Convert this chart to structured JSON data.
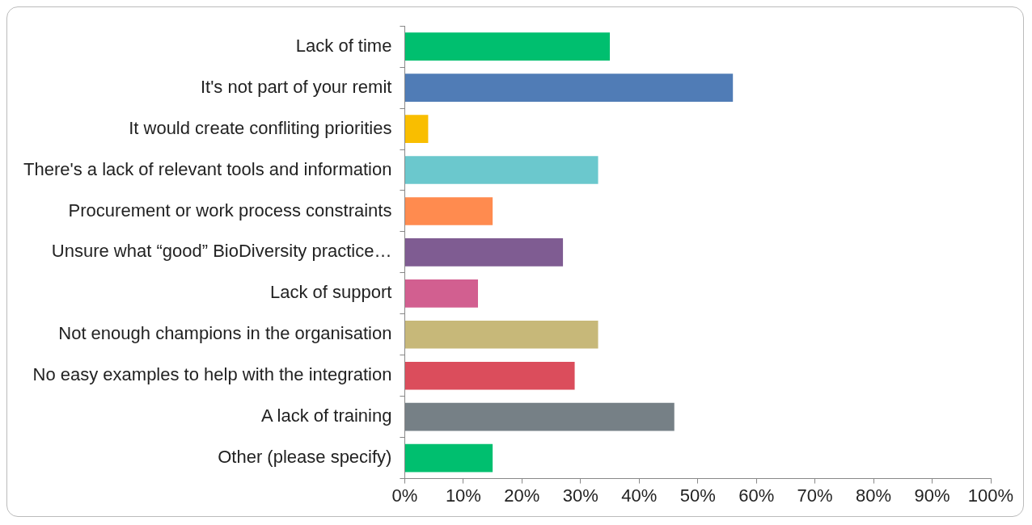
{
  "chart_data": {
    "type": "bar",
    "orientation": "horizontal",
    "categories": [
      "Lack of time",
      "It's not part of your remit",
      "It would create confliting priorities",
      "There's a lack of relevant tools and information",
      "Procurement or work process constraints",
      "Unsure what “good” BioDiversity practice…",
      "Lack of support",
      "Not enough champions in the organisation",
      "No easy examples to help with the integration",
      "A lack of training",
      "Other (please specify)"
    ],
    "values": [
      35,
      56,
      4,
      33,
      15,
      27,
      12.5,
      33,
      29,
      46,
      15
    ],
    "colors": [
      "#00bf6f",
      "#507cb6",
      "#f9be00",
      "#6bc8cd",
      "#ff8b4f",
      "#7f5c92",
      "#d25f90",
      "#c7b879",
      "#db4d5c",
      "#768086",
      "#00bf6f"
    ],
    "xlim": [
      0,
      100
    ],
    "xticks": [
      {
        "value": 0,
        "label": "0%"
      },
      {
        "value": 10,
        "label": "10%"
      },
      {
        "value": 20,
        "label": "20%"
      },
      {
        "value": 30,
        "label": "30%"
      },
      {
        "value": 40,
        "label": "40%"
      },
      {
        "value": 50,
        "label": "50%"
      },
      {
        "value": 60,
        "label": "60%"
      },
      {
        "value": 70,
        "label": "70%"
      },
      {
        "value": 80,
        "label": "80%"
      },
      {
        "value": 90,
        "label": "90%"
      },
      {
        "value": 100,
        "label": "100%"
      }
    ],
    "grid": false,
    "legend": false
  }
}
